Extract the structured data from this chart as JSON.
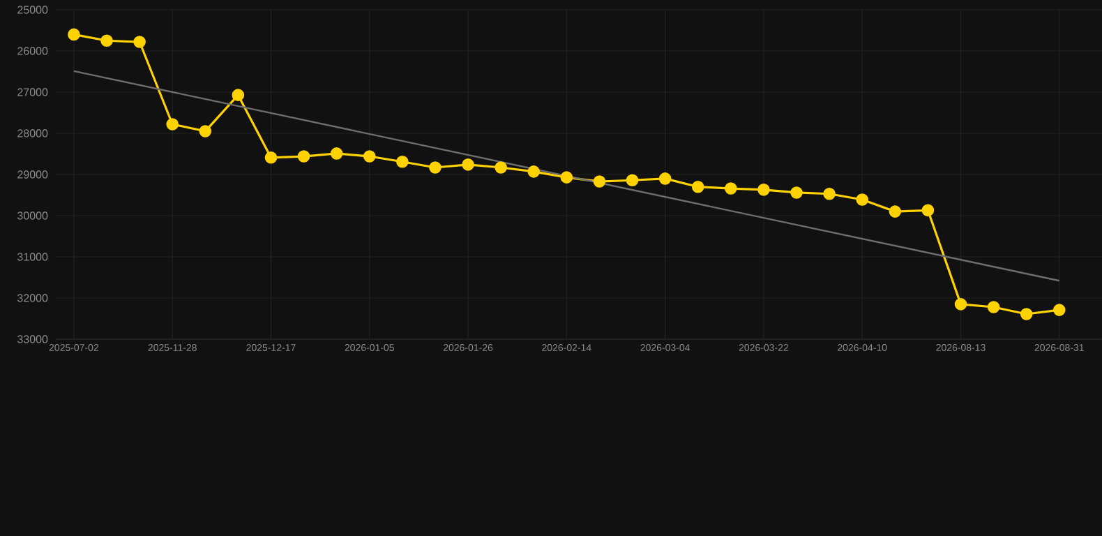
{
  "chart_data": {
    "type": "line",
    "categories": [
      "2025-07-02",
      null,
      null,
      "2025-11-28",
      null,
      null,
      "2025-12-17",
      null,
      null,
      "2026-01-05",
      null,
      null,
      "2026-01-26",
      null,
      null,
      "2026-02-14",
      null,
      null,
      "2026-03-04",
      null,
      null,
      "2026-03-22",
      null,
      null,
      "2026-04-10",
      null,
      null,
      "2026-08-13",
      null,
      null,
      "2026-08-31"
    ],
    "series": [
      {
        "color": "#ffd200",
        "marker": "circle",
        "values": [
          25600,
          25750,
          25780,
          27780,
          27950,
          27070,
          28590,
          28560,
          28490,
          28560,
          28690,
          28830,
          28760,
          28830,
          28930,
          29070,
          29170,
          29140,
          29100,
          29300,
          29340,
          29370,
          29440,
          29470,
          29610,
          29900,
          29870,
          32150,
          32220,
          32390,
          32290
        ]
      },
      {
        "color": "#6e6e6e",
        "marker": "none",
        "values": [
          26490,
          null,
          null,
          null,
          null,
          null,
          null,
          null,
          null,
          null,
          null,
          null,
          null,
          null,
          null,
          null,
          null,
          null,
          null,
          null,
          null,
          null,
          null,
          null,
          null,
          null,
          null,
          null,
          null,
          null,
          31580
        ]
      }
    ],
    "ylim": [
      33000,
      25000
    ],
    "yticks": [
      25000,
      26000,
      27000,
      28000,
      29000,
      30000,
      31000,
      32000,
      33000
    ],
    "grid": true
  }
}
